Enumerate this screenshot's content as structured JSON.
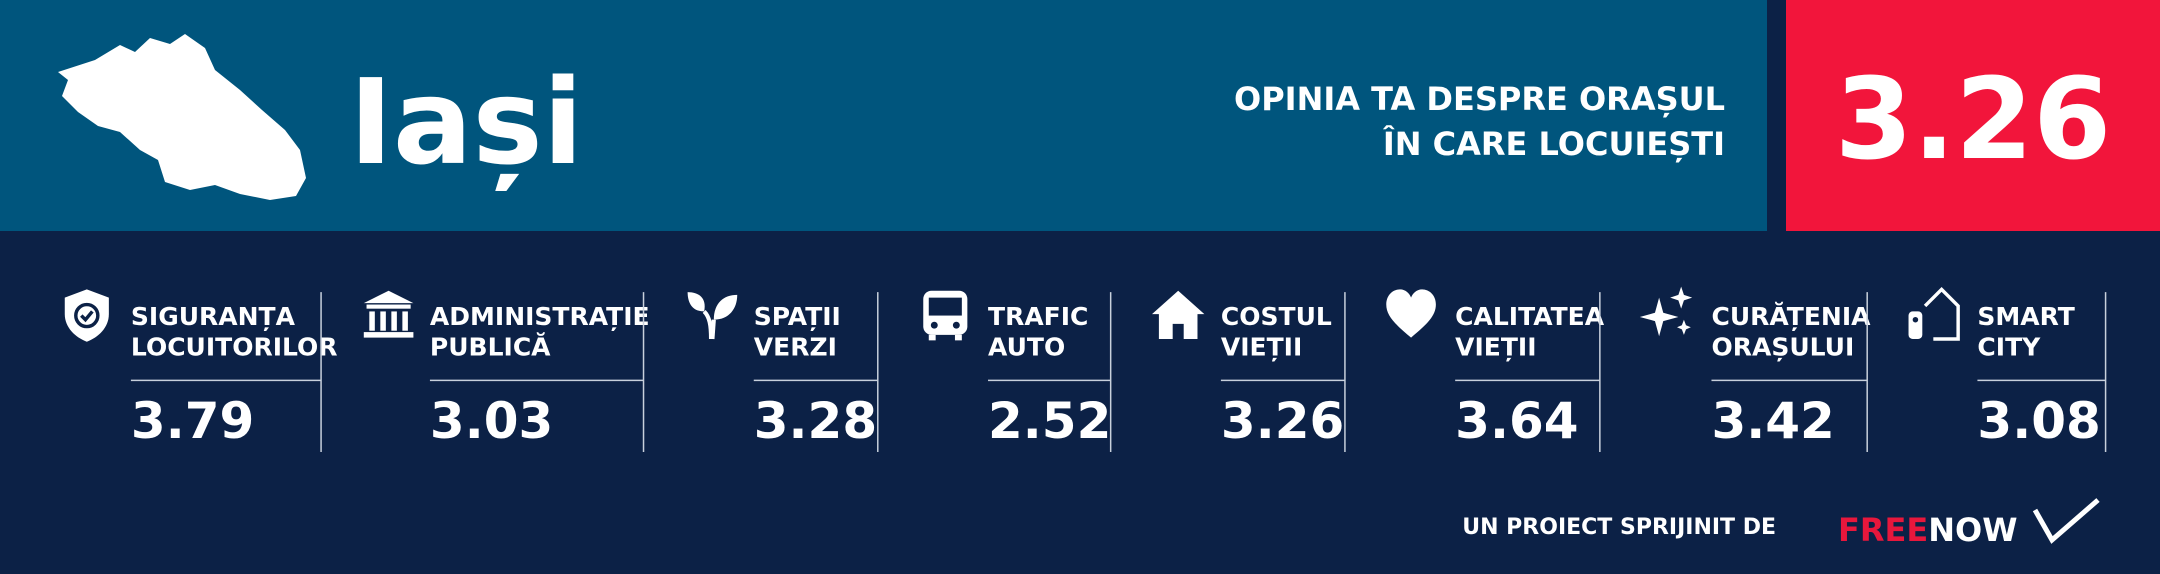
{
  "header": {
    "title": "Iași",
    "subtitle": [
      "OPINIA TA DESPRE ORAȘUL",
      "ÎN CARE LOCUIEȘTI"
    ],
    "score": "3.26"
  },
  "items": [
    {
      "label": [
        "SIGURANȚA",
        "LOCUITORILOR"
      ],
      "value": "3.79"
    },
    {
      "label": [
        "ADMINISTRAȚIE",
        "PUBLICĂ"
      ],
      "value": "3.03"
    },
    {
      "label": [
        "SPAȚII",
        "VERZI"
      ],
      "value": "3.28"
    },
    {
      "label": [
        "TRAFIC",
        "AUTO"
      ],
      "value": "2.52"
    },
    {
      "label": [
        "COSTUL",
        "VIEȚII"
      ],
      "value": "3.26"
    },
    {
      "label": [
        "CALITATEA",
        "VIEȚII"
      ],
      "value": "3.64"
    },
    {
      "label": [
        "CURĂȚENIA",
        "ORAȘULUI"
      ],
      "value": "3.42"
    },
    {
      "label": [
        "SMART",
        "CITY"
      ],
      "value": "3.08"
    }
  ],
  "footer": {
    "text": "UN PROIECT SPRIJINIT DE",
    "logo": [
      "FREE",
      "NOW"
    ]
  }
}
